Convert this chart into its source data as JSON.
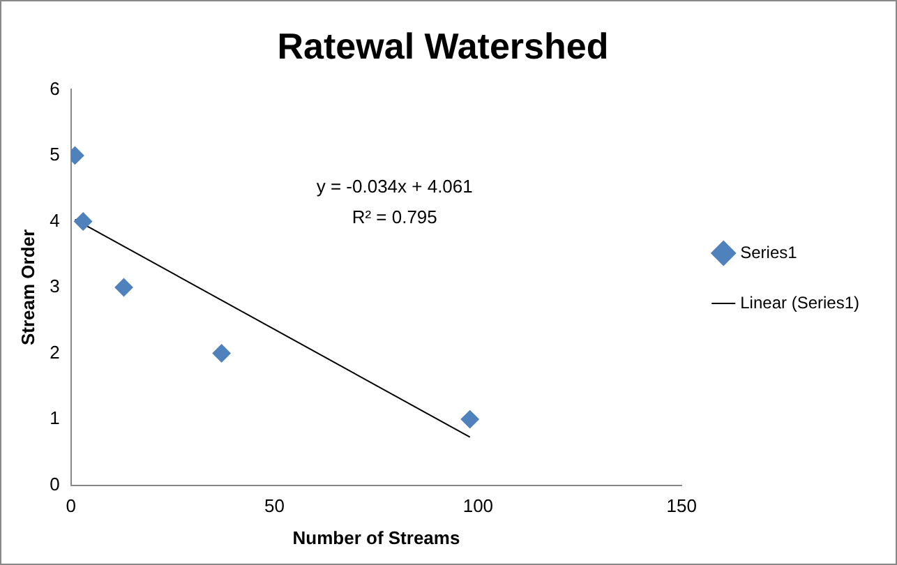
{
  "chart_data": {
    "type": "scatter",
    "title": "Ratewal Watershed",
    "xlabel": "Number of Streams",
    "ylabel": "Stream Order",
    "series": [
      {
        "name": "Series1",
        "color": "#4f81bd",
        "marker": "diamond",
        "x": [
          1,
          3,
          13,
          37,
          98
        ],
        "values": [
          5,
          4,
          3,
          2,
          1
        ]
      },
      {
        "type": "line",
        "name": "Linear (Series1)",
        "color": "#000000",
        "marker": "none",
        "line_style": "solid",
        "x": [
          1,
          98
        ],
        "values": [
          4.03,
          0.73
        ]
      }
    ],
    "xlim": [
      0,
      150
    ],
    "ylim": [
      0,
      6
    ],
    "xticks": [
      0,
      50,
      100,
      150
    ],
    "yticks": [
      0,
      1,
      2,
      3,
      4,
      5,
      6
    ],
    "grid": false,
    "legend": "right",
    "annotations": [
      "y = -0.034x + 4.061",
      "R² = 0.795"
    ]
  }
}
